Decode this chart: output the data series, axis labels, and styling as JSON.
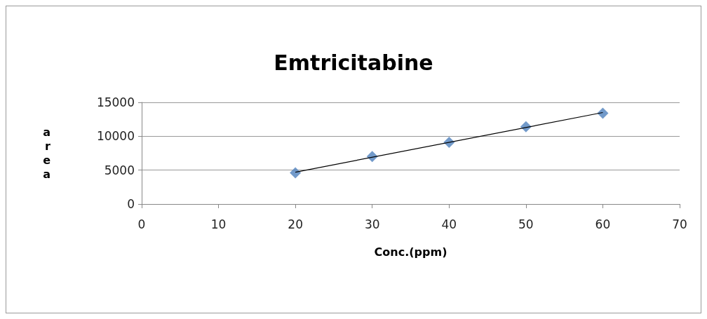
{
  "chart_data": {
    "type": "scatter",
    "title": "Emtricitabine",
    "xlabel": "Conc.(ppm)",
    "ylabel": "area",
    "series": [
      {
        "color": "#4f81bd",
        "marker": "diamond",
        "x": [
          20,
          30,
          40,
          50,
          60
        ],
        "values": [
          4600,
          7000,
          9100,
          11400,
          13400
        ]
      },
      {
        "type": "line",
        "color": "#000000",
        "marker": "none",
        "x": [
          20,
          60
        ],
        "values": [
          4700,
          13500
        ]
      }
    ],
    "xlim": [
      0,
      70
    ],
    "xticks": [
      0,
      10,
      20,
      30,
      40,
      50,
      60,
      70
    ],
    "ylim": [
      0,
      15000
    ],
    "yticks": [
      0,
      5000,
      10000,
      15000
    ],
    "grid": "y"
  }
}
